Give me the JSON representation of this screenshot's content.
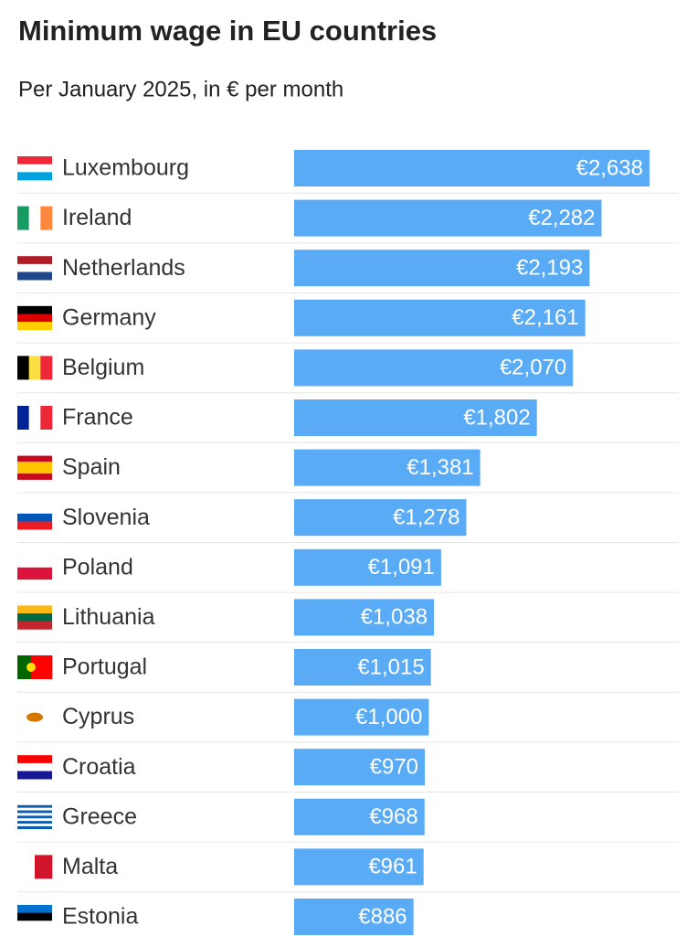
{
  "chart_data": {
    "type": "bar",
    "orientation": "horizontal",
    "title": "Minimum wage in EU countries",
    "subtitle": "Per January 2025, in € per month",
    "categories": [
      "Luxembourg",
      "Ireland",
      "Netherlands",
      "Germany",
      "Belgium",
      "France",
      "Spain",
      "Slovenia",
      "Poland",
      "Lithuania",
      "Portugal",
      "Cyprus",
      "Croatia",
      "Greece",
      "Malta",
      "Estonia"
    ],
    "values": [
      2638,
      2282,
      2193,
      2161,
      2070,
      1802,
      1381,
      1278,
      1091,
      1038,
      1015,
      1000,
      970,
      968,
      961,
      886
    ],
    "value_labels": [
      "€2,638",
      "€2,282",
      "€2,193",
      "€2,161",
      "€2,070",
      "€1,802",
      "€1,381",
      "€1,278",
      "€1,091",
      "€1,038",
      "€1,015",
      "€1,000",
      "€970",
      "€968",
      "€961",
      "€886"
    ],
    "color": "#5aabf5"
  }
}
